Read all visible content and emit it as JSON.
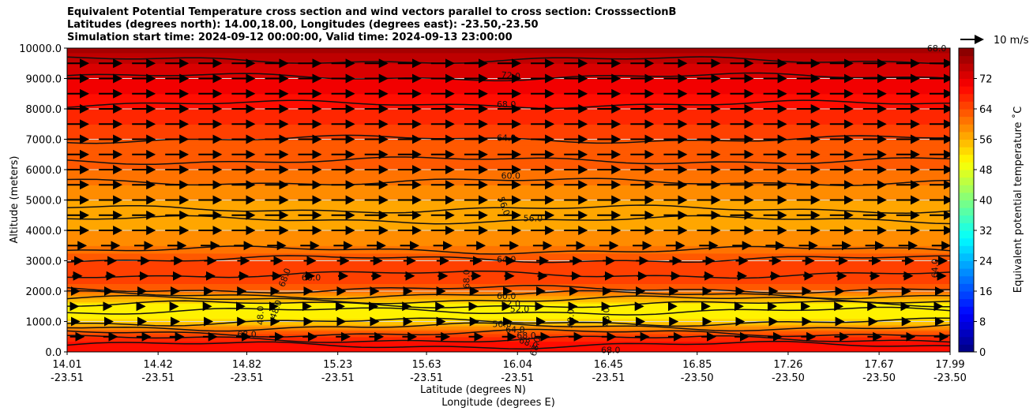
{
  "chart_data": {
    "type": "heatmap",
    "subtype": "filled-contour cross section with contour lines and wind vectors",
    "title_lines": [
      "Equivalent Potential Temperature cross section and wind vectors parallel to cross section: CrosssectionB",
      "Latitudes (degrees north): 14.00,18.00, Longitudes (degrees east): -23.50,-23.50",
      "Simulation start time: 2024-09-12 00:00:00, Valid time: 2024-09-13 23:00:00"
    ],
    "xlabel": "Latitude (degrees N)",
    "xlabel2": "Longitude (degrees E)",
    "ylabel": "Altitude (meters)",
    "x_ticks": [
      {
        "lat": "14.01",
        "lon": "-23.51"
      },
      {
        "lat": "14.42",
        "lon": "-23.51"
      },
      {
        "lat": "14.82",
        "lon": "-23.51"
      },
      {
        "lat": "15.23",
        "lon": "-23.51"
      },
      {
        "lat": "15.63",
        "lon": "-23.51"
      },
      {
        "lat": "16.04",
        "lon": "-23.51"
      },
      {
        "lat": "16.45",
        "lon": "-23.51"
      },
      {
        "lat": "16.85",
        "lon": "-23.50"
      },
      {
        "lat": "17.26",
        "lon": "-23.50"
      },
      {
        "lat": "17.67",
        "lon": "-23.50"
      },
      {
        "lat": "17.99",
        "lon": "-23.50"
      }
    ],
    "x_tick_positions": [
      14.01,
      14.42,
      14.82,
      15.23,
      15.63,
      16.04,
      16.45,
      16.85,
      17.26,
      17.67,
      17.99
    ],
    "xlim": [
      14.01,
      17.99
    ],
    "y_ticks": [
      "0.0",
      "1000.0",
      "2000.0",
      "3000.0",
      "4000.0",
      "5000.0",
      "6000.0",
      "7000.0",
      "8000.0",
      "9000.0",
      "10000.0"
    ],
    "y_tick_values": [
      0,
      1000,
      2000,
      3000,
      4000,
      5000,
      6000,
      7000,
      8000,
      9000,
      10000
    ],
    "ylim": [
      0,
      10000
    ],
    "grid": "horizontal",
    "colorbar": {
      "label": "Equivalent potential temperature ˚C",
      "range": [
        0,
        80
      ],
      "tick_labels": [
        "0",
        "8",
        "16",
        "24",
        "32",
        "40",
        "48",
        "56",
        "64",
        "72"
      ],
      "tick_values": [
        0,
        8,
        16,
        24,
        32,
        40,
        48,
        56,
        64,
        72
      ],
      "colormap": "jet",
      "level_step": 2
    },
    "field_profile": {
      "altitude_m": [
        0,
        300,
        600,
        900,
        1200,
        1500,
        1800,
        2100,
        2500,
        3000,
        3500,
        4000,
        4500,
        5000,
        5500,
        6000,
        6500,
        7000,
        7500,
        8000,
        8500,
        9000,
        9500,
        10000
      ],
      "theta_e_C": [
        70,
        69,
        64,
        56,
        50,
        50,
        57,
        63,
        66,
        64,
        60,
        58,
        57,
        58,
        60,
        62,
        63,
        64,
        66,
        68,
        70,
        72,
        74,
        77
      ]
    },
    "contour_labels": [
      {
        "text": "72.0",
        "lat": 16.01,
        "alt": 9100,
        "rotate": 5
      },
      {
        "text": "68.0",
        "lat": 15.99,
        "alt": 8150,
        "rotate": 0
      },
      {
        "text": "64.0",
        "lat": 15.99,
        "alt": 7050,
        "rotate": 0
      },
      {
        "text": "60.0",
        "lat": 16.01,
        "alt": 5800,
        "rotate": 0
      },
      {
        "text": "56.0",
        "lat": 15.98,
        "alt": 4800,
        "rotate": 70
      },
      {
        "text": "56.0",
        "lat": 16.11,
        "alt": 4400,
        "rotate": 0
      },
      {
        "text": "64.0",
        "lat": 15.99,
        "alt": 3050,
        "rotate": 0
      },
      {
        "text": "68.0",
        "lat": 14.99,
        "alt": 2450,
        "rotate": -70
      },
      {
        "text": "68.0",
        "lat": 15.11,
        "alt": 2450,
        "rotate": 0
      },
      {
        "text": "68.0",
        "lat": 15.81,
        "alt": 2400,
        "rotate": -90
      },
      {
        "text": "64.0",
        "lat": 17.92,
        "alt": 2750,
        "rotate": -90
      },
      {
        "text": "60.0",
        "lat": 15.99,
        "alt": 1850,
        "rotate": 0
      },
      {
        "text": "52.0",
        "lat": 16.01,
        "alt": 1600,
        "rotate": 0
      },
      {
        "text": "52.0",
        "lat": 16.05,
        "alt": 1420,
        "rotate": 0
      },
      {
        "text": "48.0",
        "lat": 14.88,
        "alt": 1200,
        "rotate": -90
      },
      {
        "text": "48.0",
        "lat": 14.95,
        "alt": 1400,
        "rotate": -70
      },
      {
        "text": "48.0",
        "lat": 16.28,
        "alt": 1100,
        "rotate": -90
      },
      {
        "text": "48.0",
        "lat": 16.44,
        "alt": 1150,
        "rotate": -90
      },
      {
        "text": "56.0",
        "lat": 15.97,
        "alt": 920,
        "rotate": 0
      },
      {
        "text": "64.0",
        "lat": 16.03,
        "alt": 740,
        "rotate": 0
      },
      {
        "text": "68.0",
        "lat": 14.82,
        "alt": 580,
        "rotate": 0
      },
      {
        "text": "68.0",
        "lat": 16.08,
        "alt": 540,
        "rotate": 0
      },
      {
        "text": "68.0",
        "lat": 16.09,
        "alt": 300,
        "rotate": 20
      },
      {
        "text": "68.0",
        "lat": 16.12,
        "alt": 180,
        "rotate": -75
      },
      {
        "text": "68.0",
        "lat": 16.46,
        "alt": 60,
        "rotate": 0
      },
      {
        "text": "68.0",
        "lat": 17.93,
        "alt": 10000,
        "rotate": 0
      }
    ],
    "wind": {
      "direction": "parallel to cross section, toward increasing latitude",
      "reference_label": "10 m/s",
      "reference_speed_ms": 10,
      "rows_altitude_m": [
        500,
        1000,
        1500,
        2000,
        2500,
        3000,
        3500,
        4000,
        4500,
        5000,
        5500,
        6000,
        6500,
        7000,
        7500,
        8000,
        8500,
        9000,
        9500
      ],
      "speed_ms": [
        6,
        2,
        1,
        2,
        4,
        5,
        8,
        10,
        10,
        10,
        10,
        10,
        10,
        10,
        10,
        10,
        10,
        10,
        10
      ]
    }
  }
}
